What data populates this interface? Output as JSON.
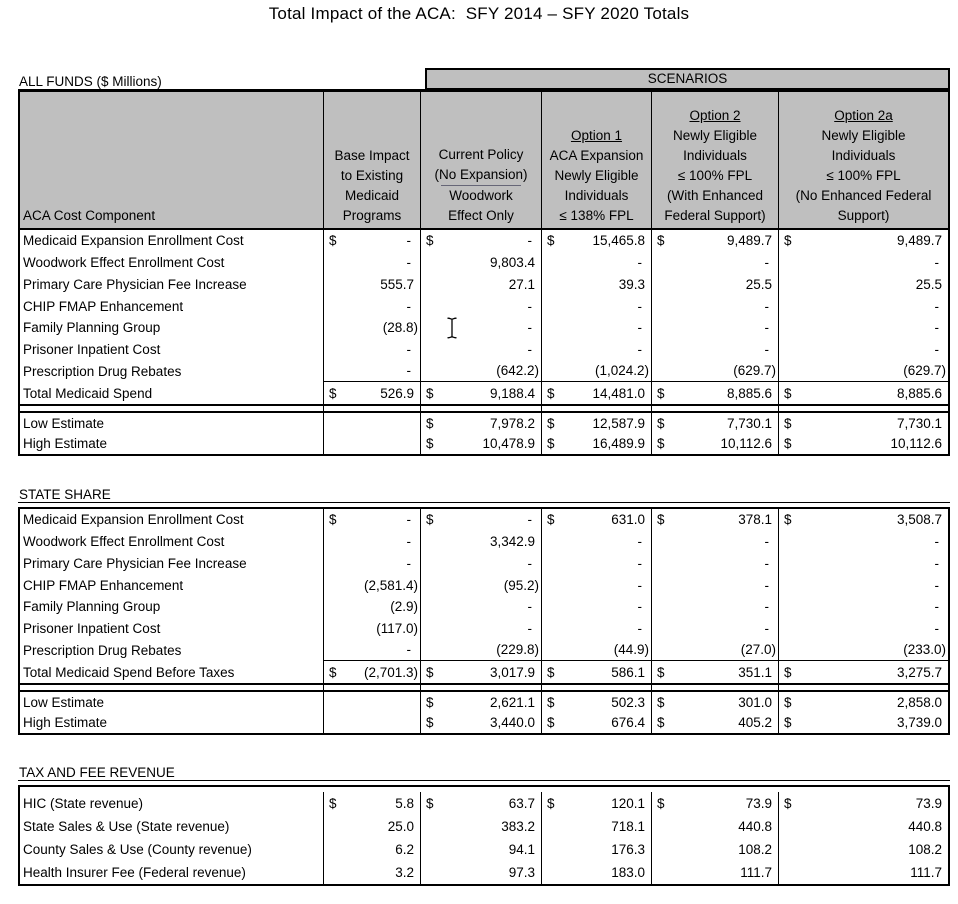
{
  "title": "Total Impact of the ACA:  SFY 2014 – SFY 2020 Totals",
  "scenarios_label": "SCENARIOS",
  "colors": {
    "header_bg": "#BFBFBF",
    "border": "#000000"
  },
  "header": {
    "row_label": "ACA Cost Component",
    "columns": [
      {
        "title": "",
        "lines": [
          "Base Impact",
          "to Existing",
          "Medicaid",
          "Programs"
        ]
      },
      {
        "title": "",
        "lines": [
          "Current Policy",
          "(No Expansion)",
          "Woodwork",
          "Effect Only"
        ],
        "rule_line": 2
      },
      {
        "title": "Option 1",
        "lines": [
          "ACA Expansion",
          "Newly Eligible",
          "Individuals",
          "≤ 138% FPL"
        ]
      },
      {
        "title": "Option 2",
        "lines": [
          "Newly Eligible",
          "Individuals",
          "≤ 100% FPL",
          "(With Enhanced",
          "Federal Support)"
        ]
      },
      {
        "title": "Option 2a",
        "lines": [
          "Newly Eligible",
          "Individuals",
          "≤ 100% FPL",
          "(No Enhanced Federal",
          "Support)"
        ]
      }
    ]
  },
  "sections": [
    {
      "label": "ALL FUNDS ($ Millions)",
      "rows": [
        {
          "label": "Medicaid Expansion Enrollment Cost",
          "cells": [
            "$ -",
            "$ -",
            "$ 15,465.8",
            "$ 9,489.7",
            "$ 9,489.7"
          ]
        },
        {
          "label": "Woodwork Effect Enrollment Cost",
          "cells": [
            "-",
            "9,803.4",
            "-",
            "-",
            "-"
          ]
        },
        {
          "label": "Primary Care Physician Fee Increase",
          "cells": [
            "555.7",
            "27.1",
            "39.3",
            "25.5",
            "25.5"
          ]
        },
        {
          "label": "CHIP FMAP Enhancement",
          "cells": [
            "-",
            "-",
            "-",
            "-",
            "-"
          ]
        },
        {
          "label": "Family Planning Group",
          "cells": [
            "(28.8)",
            "-",
            "-",
            "-",
            "-"
          ]
        },
        {
          "label": "Prisoner Inpatient Cost",
          "cells": [
            "-",
            "-",
            "-",
            "-",
            "-"
          ]
        },
        {
          "label": "Prescription Drug Rebates",
          "cells": [
            "-",
            "(642.2)",
            "(1,024.2)",
            "(629.7)",
            "(629.7)"
          ],
          "rule": true
        },
        {
          "label": "Total Medicaid Spend",
          "cells": [
            "$ 526.9",
            "$ 9,188.4",
            "$ 14,481.0",
            "$ 8,885.6",
            "$ 8,885.6"
          ],
          "total": true
        }
      ],
      "estimates": [
        {
          "label": "Low Estimate",
          "cells": [
            "",
            "$ 7,978.2",
            "$ 12,587.9",
            "$ 7,730.1",
            "$ 7,730.1"
          ]
        },
        {
          "label": "High Estimate",
          "cells": [
            "",
            "$ 10,478.9",
            "$ 16,489.9",
            "$ 10,112.6",
            "$ 10,112.6"
          ]
        }
      ]
    },
    {
      "label": "STATE SHARE",
      "rows": [
        {
          "label": "Medicaid Expansion Enrollment Cost",
          "cells": [
            "$ -",
            "$ -",
            "$ 631.0",
            "$ 378.1",
            "$ 3,508.7"
          ]
        },
        {
          "label": "Woodwork Effect Enrollment Cost",
          "cells": [
            "-",
            "3,342.9",
            "-",
            "-",
            "-"
          ]
        },
        {
          "label": "Primary Care Physician Fee Increase",
          "cells": [
            "-",
            "-",
            "-",
            "-",
            "-"
          ]
        },
        {
          "label": "CHIP FMAP Enhancement",
          "cells": [
            "(2,581.4)",
            "(95.2)",
            "-",
            "-",
            "-"
          ]
        },
        {
          "label": "Family Planning Group",
          "cells": [
            "(2.9)",
            "-",
            "-",
            "-",
            "-"
          ]
        },
        {
          "label": "Prisoner Inpatient Cost",
          "cells": [
            "(117.0)",
            "-",
            "-",
            "-",
            "-"
          ]
        },
        {
          "label": "Prescription Drug Rebates",
          "cells": [
            "-",
            "(229.8)",
            "(44.9)",
            "(27.0)",
            "(233.0)"
          ],
          "rule": true
        },
        {
          "label": "Total Medicaid Spend Before Taxes",
          "cells": [
            "$ (2,701.3)",
            "$ 3,017.9",
            "$ 586.1",
            "$ 351.1",
            "$ 3,275.7"
          ],
          "total": true
        }
      ],
      "estimates": [
        {
          "label": "Low Estimate",
          "cells": [
            "",
            "$ 2,621.1",
            "$ 502.3",
            "$ 301.0",
            "$ 2,858.0"
          ]
        },
        {
          "label": "High Estimate",
          "cells": [
            "",
            "$ 3,440.0",
            "$ 676.4",
            "$ 405.2",
            "$ 3,739.0"
          ]
        }
      ]
    },
    {
      "label": "TAX AND FEE REVENUE",
      "rows": [
        {
          "label": "HIC (State revenue)",
          "cells": [
            "$ 5.8",
            "$ 63.7",
            "$ 120.1",
            "$ 73.9",
            "$ 73.9"
          ]
        },
        {
          "label": "State Sales & Use (State revenue)",
          "cells": [
            "25.0",
            "383.2",
            "718.1",
            "440.8",
            "440.8"
          ]
        },
        {
          "label": "County Sales & Use (County revenue)",
          "cells": [
            "6.2",
            "94.1",
            "176.3",
            "108.2",
            "108.2"
          ]
        },
        {
          "label": "Health Insurer Fee (Federal revenue)",
          "cells": [
            "3.2",
            "97.3",
            "183.0",
            "111.7",
            "111.7"
          ]
        }
      ],
      "estimates": []
    }
  ]
}
